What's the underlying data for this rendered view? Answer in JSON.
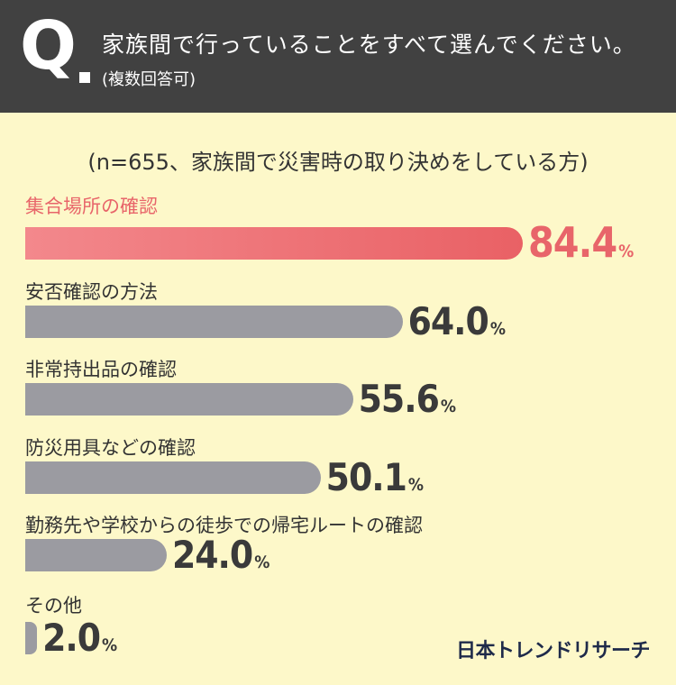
{
  "header": {
    "q_mark": "Q",
    "question": "家族間で行っていることをすべて選んでください。",
    "note": "(複数回答可)"
  },
  "sample_note": "(n=655、家族間で災害時の取り決めをしている方)",
  "brand": "日本トレンドリサーチ",
  "colors": {
    "highlight": "#e8656a",
    "bar": "#9b9ba1",
    "background": "#fdf8c9",
    "header": "#414141"
  },
  "chart_data": {
    "type": "bar",
    "orientation": "horizontal",
    "categories": [
      "集合場所の確認",
      "安否確認の方法",
      "非常持出品の確認",
      "防災用具などの確認",
      "勤務先や学校からの徒歩での帰宅ルートの確認",
      "その他"
    ],
    "values": [
      84.4,
      64.0,
      55.6,
      50.1,
      24.0,
      2.0
    ],
    "value_labels": [
      "84.4",
      "64.0",
      "55.6",
      "50.1",
      "24.0",
      "2.0"
    ],
    "unit": "%",
    "xlim": [
      0,
      100
    ]
  }
}
